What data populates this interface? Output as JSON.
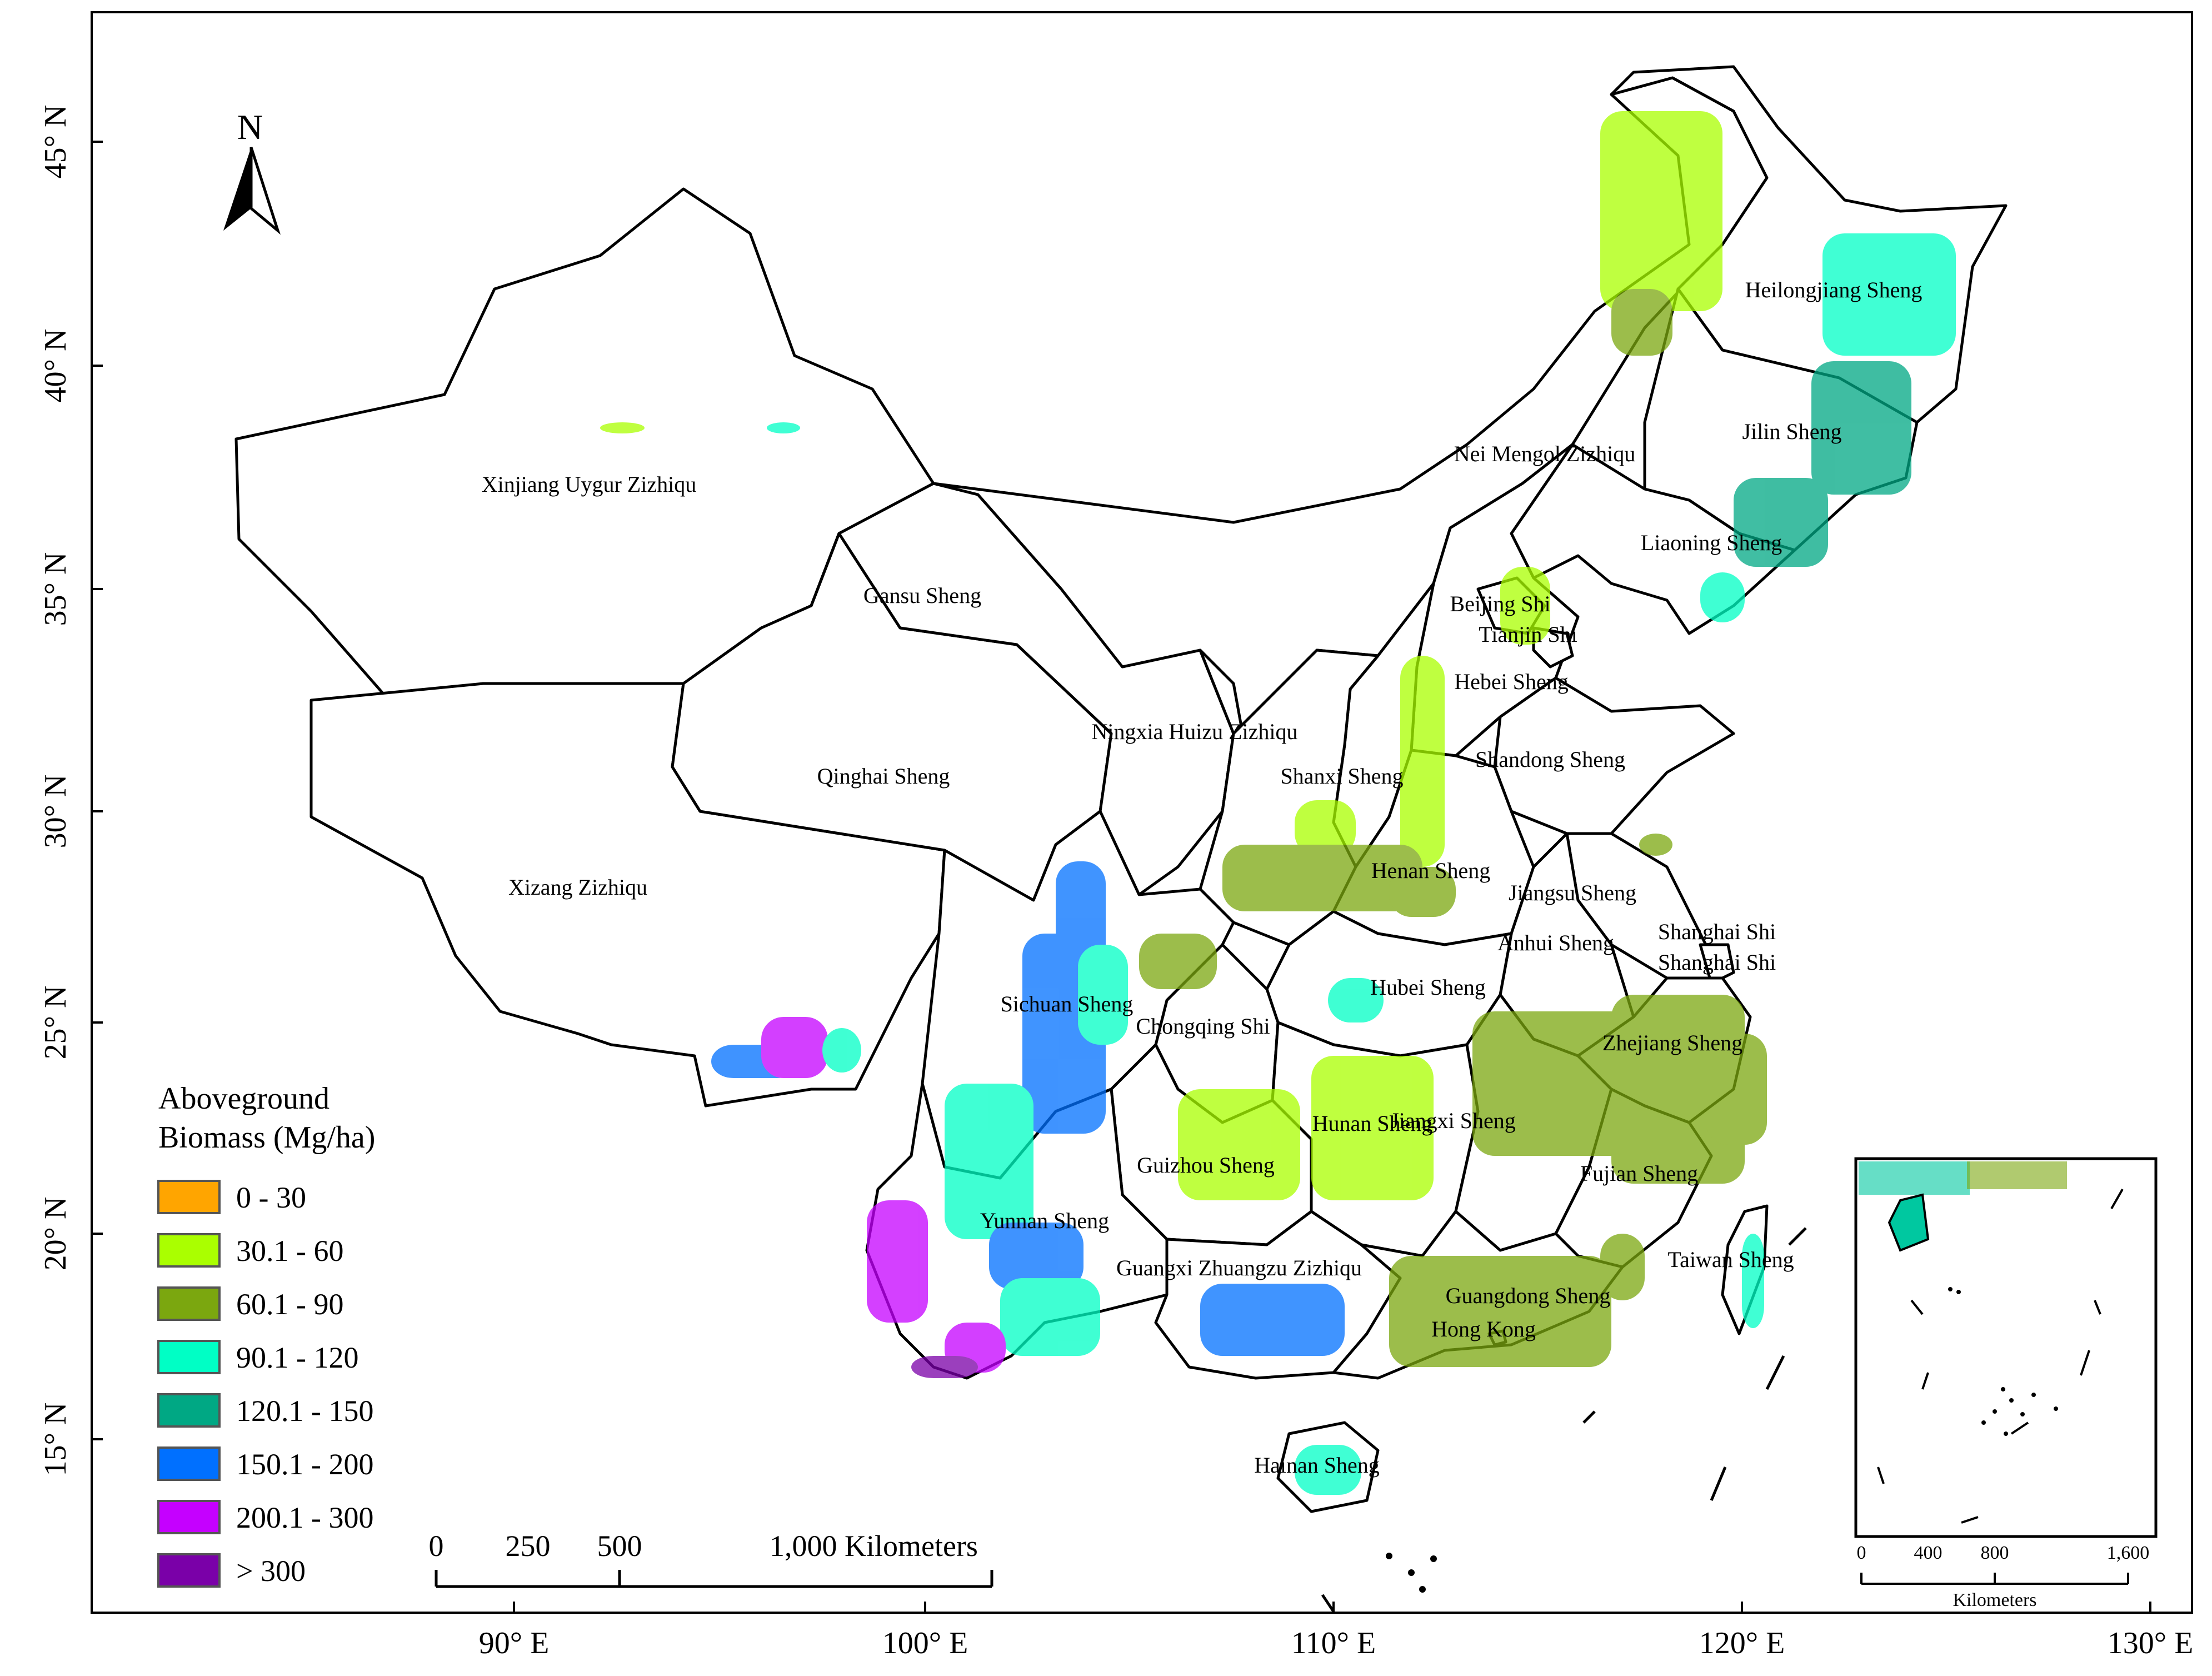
{
  "map": {
    "north_arrow": "N",
    "lon_labels": [
      "90° E",
      "100° E",
      "110° E",
      "120° E",
      "130° E"
    ],
    "lat_labels": [
      "45° N",
      "40° N",
      "35° N",
      "30° N",
      "25° N",
      "20° N",
      "15° N"
    ]
  },
  "provinces": [
    "Xinjiang Uygur Zizhiqu",
    "Gansu Sheng",
    "Qinghai Sheng",
    "Xizang Zizhiqu",
    "Sichuan Sheng",
    "Yunnan Sheng",
    "Nei Mengol Zizhiqu",
    "Heilongjiang Sheng",
    "Jilin Sheng",
    "Liaoning Sheng",
    "Beijing Shi",
    "Tianjin Shi",
    "Hebei Sheng",
    "Shandong Sheng",
    "Ningxia Huizu Zizhiqu",
    "Shanxi Sheng",
    "Henan Sheng",
    "Jiangsu Sheng",
    "Anhui Sheng",
    "Shanghai Shi",
    "Shanghai Shi",
    "Hubei Sheng",
    "Chongqing Shi",
    "Zhejiang Sheng",
    "Hunan Sheng",
    "Jiangxi Sheng",
    "Guizhou Sheng",
    "Fujian Sheng",
    "Guangxi Zhuangzu Zizhiqu",
    "Guangdong Sheng",
    "Hong Kong",
    "Taiwan Sheng",
    "Hainan Sheng"
  ],
  "legend": {
    "title_line1": "Aboveground",
    "title_line2": "Biomass (Mg/ha)",
    "classes": [
      {
        "label": "0 - 30",
        "color": "#FFA500"
      },
      {
        "label": "30.1 - 60",
        "color": "#AAFF00"
      },
      {
        "label": "60.1 - 90",
        "color": "#7BA70F"
      },
      {
        "label": "90.1 - 120",
        "color": "#00FFC5"
      },
      {
        "label": "120.1 - 150",
        "color": "#00A884"
      },
      {
        "label": "150.1 - 200",
        "color": "#0070FF"
      },
      {
        "label": "200.1 - 300",
        "color": "#C500FF"
      },
      {
        "label": "> 300",
        "color": "#7A00A8"
      }
    ]
  },
  "scale_bar": {
    "ticks": [
      "0",
      "250",
      "500",
      "1,000 Kilometers"
    ]
  },
  "inset": {
    "ticks": [
      "0",
      "400",
      "800",
      "1,600"
    ],
    "unit": "Kilometers"
  }
}
